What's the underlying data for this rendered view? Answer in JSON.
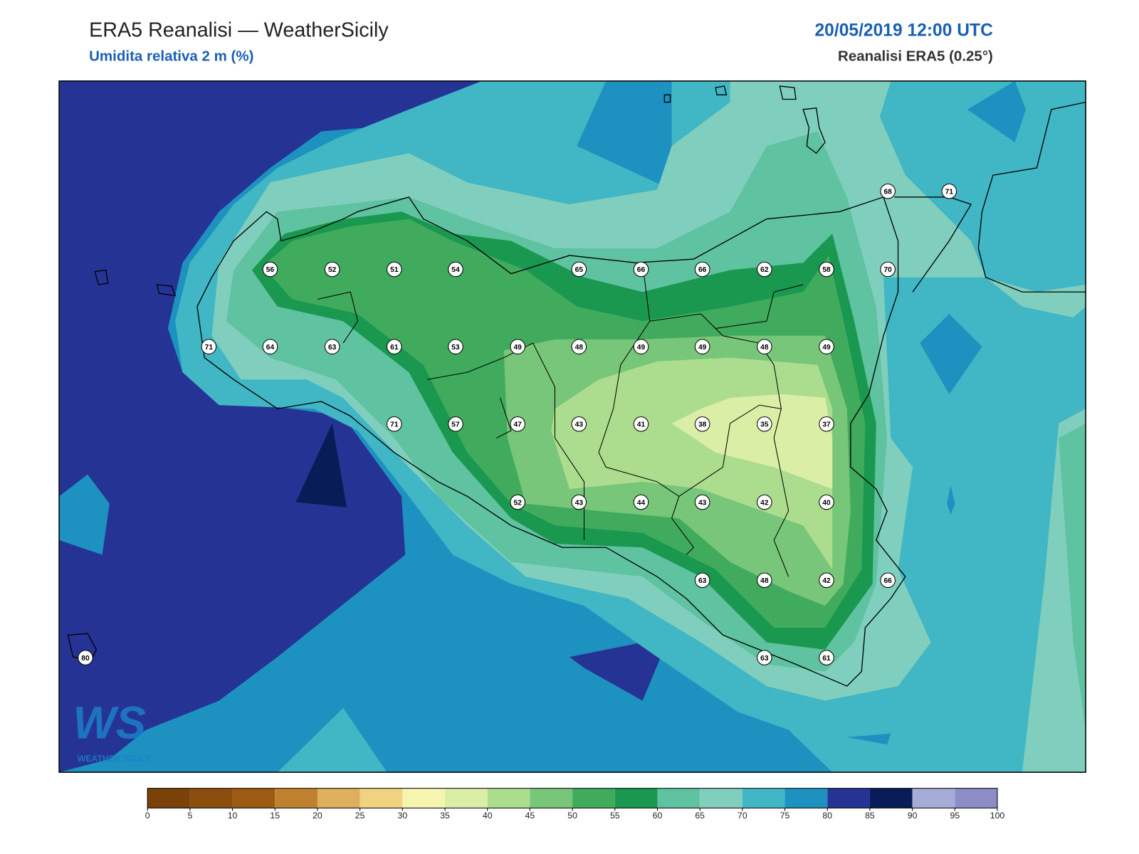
{
  "header": {
    "title": "ERA5 Reanalisi — WeatherSicily",
    "subtitle": "Umidita relativa 2 m (%)",
    "datetime": "20/05/2019 12:00 UTC",
    "source": "Reanalisi ERA5 (0.25°)"
  },
  "stations": {
    "values": [
      56,
      52,
      51,
      54,
      65,
      66,
      66,
      62,
      58,
      70,
      68,
      71,
      71,
      64,
      63,
      61,
      53,
      49,
      48,
      49,
      49,
      48,
      49,
      71,
      57,
      47,
      43,
      41,
      38,
      35,
      37,
      52,
      43,
      44,
      43,
      42,
      40,
      63,
      48,
      42,
      66,
      80,
      63,
      61
    ]
  },
  "colorbar": {
    "ticks": [
      0,
      5,
      10,
      15,
      20,
      25,
      30,
      35,
      40,
      45,
      50,
      55,
      60,
      65,
      70,
      75,
      80,
      85,
      90,
      95,
      100
    ],
    "colors": [
      "#7a4209",
      "#8c4e0d",
      "#9c5a12",
      "#c0812e",
      "#deaf5c",
      "#f0d380",
      "#f5f5b0",
      "#dbeea6",
      "#acdd8e",
      "#78c679",
      "#41ab5d",
      "#1a9850",
      "#5fc2a0",
      "#80cfbe",
      "#41b6c4",
      "#1d91c0",
      "#253494",
      "#081d58",
      "#a6acd8",
      "#8c8cc6"
    ]
  },
  "logo": {
    "mark": "WS",
    "text": "WEATHER SICILY"
  }
}
